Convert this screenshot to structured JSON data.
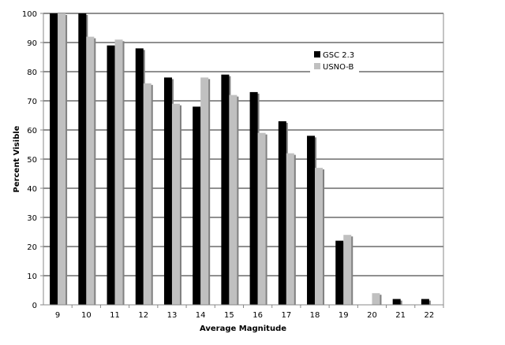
{
  "chart_data": {
    "type": "bar",
    "title": "",
    "xlabel": "Average Magnitude",
    "ylabel": "Percent Visible",
    "categories": [
      "9",
      "10",
      "11",
      "12",
      "13",
      "14",
      "15",
      "16",
      "17",
      "18",
      "19",
      "20",
      "21",
      "22"
    ],
    "series": [
      {
        "name": "GSC 2.3",
        "color": "#000000",
        "values": [
          100,
          100,
          89,
          88,
          78,
          68,
          79,
          73,
          63,
          58,
          22,
          0,
          2,
          2
        ]
      },
      {
        "name": "USNO-B",
        "color": "#c0c0c0",
        "values": [
          100,
          92,
          91,
          76,
          69,
          78,
          72,
          59,
          52,
          47,
          24,
          4,
          0,
          0
        ]
      }
    ],
    "ylim": [
      0,
      100
    ],
    "yticks": [
      0,
      10,
      20,
      30,
      40,
      50,
      60,
      70,
      80,
      90,
      100
    ],
    "grid": true,
    "legend_position": "top-right"
  }
}
